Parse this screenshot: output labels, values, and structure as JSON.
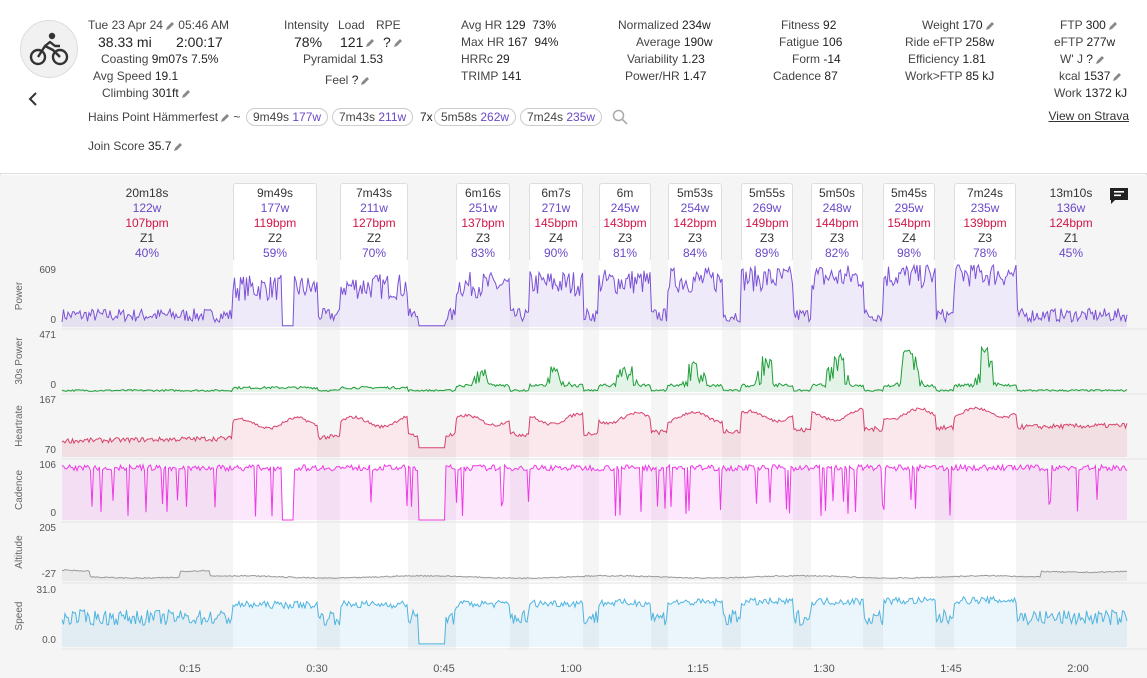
{
  "header": {
    "date": "Tue 23 Apr 24",
    "time": "05:46 AM",
    "distance": "38.33 mi",
    "duration": "2:00:17",
    "coasting_label": "Coasting",
    "coasting_value": "9m07s",
    "coasting_pct": "7.5%",
    "avg_speed_label": "Avg Speed",
    "avg_speed_value": "19.1",
    "climbing_label": "Climbing",
    "climbing_value": "301ft",
    "intensity_label": "Intensity",
    "intensity_value": "78%",
    "load_label": "Load",
    "load_value": "121",
    "rpe_label": "RPE",
    "rpe_value": "?",
    "pyramidal_label": "Pyramidal",
    "pyramidal_value": "1.53",
    "feel_label": "Feel",
    "feel_value": "?",
    "avg_hr_label": "Avg HR",
    "avg_hr_value": "129",
    "avg_hr_pct": "73%",
    "max_hr_label": "Max HR",
    "max_hr_value": "167",
    "max_hr_pct": "94%",
    "hrrc_label": "HRRc",
    "hrrc_value": "29",
    "trimp_label": "TRIMP",
    "trimp_value": "141",
    "normalized_label": "Normalized",
    "normalized_value": "234w",
    "average_label": "Average",
    "average_value": "190w",
    "variability_label": "Variability",
    "variability_value": "1.23",
    "powerhr_label": "Power/HR",
    "powerhr_value": "1.47",
    "fitness_label": "Fitness",
    "fitness_value": "92",
    "fatigue_label": "Fatigue",
    "fatigue_value": "106",
    "form_label": "Form",
    "form_value": "-14",
    "cadence_label": "Cadence",
    "cadence_value": "87",
    "weight_label": "Weight",
    "weight_value": "170",
    "ride_eftp_label": "Ride eFTP",
    "ride_eftp_value": "258w",
    "efficiency_label": "Efficiency",
    "efficiency_value": "1.81",
    "work_ftp_label": "Work>FTP",
    "work_ftp_value": "85 kJ",
    "ftp_label": "FTP",
    "ftp_value": "300",
    "eftp_label": "eFTP",
    "eftp_value": "277w",
    "wprime_label": "W' J",
    "wprime_value": "?",
    "kcal_label": "kcal",
    "kcal_value": "1537",
    "work_label": "Work",
    "work_value": "1372 kJ",
    "activity_name": "Hains Point Hämmerfest",
    "tilde": "~",
    "chips": [
      {
        "dur": "9m49s",
        "w": "177w"
      },
      {
        "dur": "7m43s",
        "w": "211w"
      },
      {
        "dur": "5m58s",
        "w": "262w"
      },
      {
        "dur": "7m24s",
        "w": "235w"
      }
    ],
    "repeat_prefix": "7x",
    "join_score_label": "Join Score",
    "join_score_value": "35.7",
    "strava_link": "View on Strava"
  },
  "intervals": [
    {
      "dur": "20m18s",
      "w": "122w",
      "bpm": "107bpm",
      "zone": "Z1",
      "pct": "40%"
    },
    {
      "dur": "9m49s",
      "w": "177w",
      "bpm": "119bpm",
      "zone": "Z2",
      "pct": "59%"
    },
    {
      "dur": "7m43s",
      "w": "211w",
      "bpm": "127bpm",
      "zone": "Z2",
      "pct": "70%"
    },
    {
      "dur": "6m16s",
      "w": "251w",
      "bpm": "137bpm",
      "zone": "Z3",
      "pct": "83%"
    },
    {
      "dur": "6m7s",
      "w": "271w",
      "bpm": "145bpm",
      "zone": "Z4",
      "pct": "90%"
    },
    {
      "dur": "6m",
      "w": "245w",
      "bpm": "143bpm",
      "zone": "Z3",
      "pct": "81%"
    },
    {
      "dur": "5m53s",
      "w": "254w",
      "bpm": "142bpm",
      "zone": "Z3",
      "pct": "84%"
    },
    {
      "dur": "5m55s",
      "w": "269w",
      "bpm": "149bpm",
      "zone": "Z3",
      "pct": "89%"
    },
    {
      "dur": "5m50s",
      "w": "248w",
      "bpm": "144bpm",
      "zone": "Z3",
      "pct": "82%"
    },
    {
      "dur": "5m45s",
      "w": "295w",
      "bpm": "154bpm",
      "zone": "Z4",
      "pct": "98%"
    },
    {
      "dur": "7m24s",
      "w": "235w",
      "bpm": "139bpm",
      "zone": "Z3",
      "pct": "78%"
    },
    {
      "dur": "13m10s",
      "w": "136w",
      "bpm": "124bpm",
      "zone": "Z1",
      "pct": "45%"
    }
  ],
  "tracks": [
    {
      "label": "Power",
      "max": "609",
      "min": "0",
      "color": "#7b52d6"
    },
    {
      "label": "30s Power",
      "max": "471",
      "min": "0",
      "color": "#1f9e3a"
    },
    {
      "label": "Heartrate",
      "max": "167",
      "min": "70",
      "color": "#d8436b"
    },
    {
      "label": "Cadence",
      "max": "106",
      "min": "0",
      "color": "#ee3be6"
    },
    {
      "label": "Altitude",
      "max": "205",
      "min": "-27",
      "color": "#9a9a9a"
    },
    {
      "label": "Speed",
      "max": "31.0",
      "min": "0.0",
      "color": "#4fb4e0"
    }
  ],
  "time_axis": [
    "0:15",
    "0:30",
    "0:45",
    "1:00",
    "1:15",
    "1:30",
    "1:45",
    "2:00"
  ]
}
